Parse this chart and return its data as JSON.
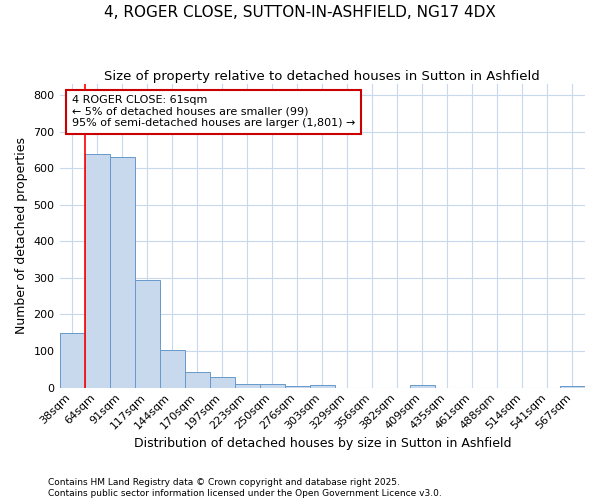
{
  "title": "4, ROGER CLOSE, SUTTON-IN-ASHFIELD, NG17 4DX",
  "subtitle": "Size of property relative to detached houses in Sutton in Ashfield",
  "xlabel": "Distribution of detached houses by size in Sutton in Ashfield",
  "ylabel": "Number of detached properties",
  "footnote1": "Contains HM Land Registry data © Crown copyright and database right 2025.",
  "footnote2": "Contains public sector information licensed under the Open Government Licence v3.0.",
  "bin_labels": [
    "38sqm",
    "64sqm",
    "91sqm",
    "117sqm",
    "144sqm",
    "170sqm",
    "197sqm",
    "223sqm",
    "250sqm",
    "276sqm",
    "303sqm",
    "329sqm",
    "356sqm",
    "382sqm",
    "409sqm",
    "435sqm",
    "461sqm",
    "488sqm",
    "514sqm",
    "541sqm",
    "567sqm"
  ],
  "bar_heights": [
    150,
    640,
    630,
    293,
    103,
    43,
    30,
    10,
    10,
    5,
    8,
    0,
    0,
    0,
    8,
    0,
    0,
    0,
    0,
    0,
    5
  ],
  "bar_color": "#c8d8ed",
  "bar_edge_color": "#6699cc",
  "red_line_x": 0.5,
  "annotation_text": "4 ROGER CLOSE: 61sqm\n← 5% of detached houses are smaller (99)\n95% of semi-detached houses are larger (1,801) →",
  "annotation_box_color": "#ffffff",
  "annotation_box_edge": "#cc0000",
  "ylim": [
    0,
    830
  ],
  "yticks": [
    0,
    100,
    200,
    300,
    400,
    500,
    600,
    700,
    800
  ],
  "bg_color": "#ffffff",
  "grid_color": "#c8d8ed",
  "title_fontsize": 11,
  "subtitle_fontsize": 9.5,
  "xlabel_fontsize": 9,
  "ylabel_fontsize": 9,
  "tick_fontsize": 8,
  "annot_fontsize": 8
}
